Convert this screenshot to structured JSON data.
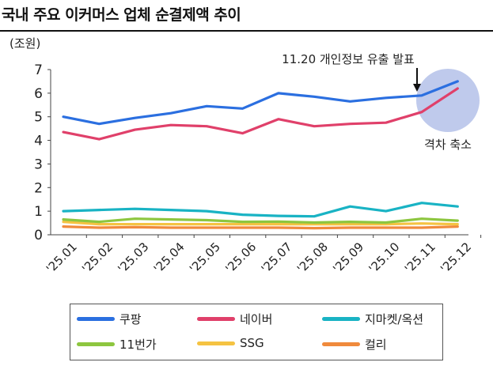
{
  "title": "국내 주요 이커머스 업체 순결제액 추이",
  "chart_data": {
    "type": "line",
    "title": "국내 주요 이커머스 업체 순결제액 추이",
    "ylabel": "(조원)",
    "xlabel": "",
    "ylim": [
      0,
      7
    ],
    "yticks": [
      "0",
      "1",
      "2",
      "3",
      "4",
      "5",
      "6",
      "7"
    ],
    "categories": [
      "'25.01",
      "'25.02",
      "'25.03",
      "'25.04",
      "'25.05",
      "'25.06",
      "'25.07",
      "'25.08",
      "'25.09",
      "'25.10",
      "'25.11",
      "'25.12"
    ],
    "series": [
      {
        "name": "쿠팡",
        "color": "#2b6fe0",
        "values": [
          5.0,
          4.7,
          4.95,
          5.15,
          5.45,
          5.35,
          6.0,
          5.85,
          5.65,
          5.8,
          5.9,
          6.5
        ]
      },
      {
        "name": "네이버",
        "color": "#e0406a",
        "values": [
          4.35,
          4.05,
          4.45,
          4.65,
          4.6,
          4.3,
          4.9,
          4.6,
          4.7,
          4.75,
          5.2,
          6.2
        ]
      },
      {
        "name": "지마켓/옥션",
        "color": "#19b3c4",
        "values": [
          1.0,
          1.05,
          1.1,
          1.05,
          1.0,
          0.85,
          0.8,
          0.78,
          1.2,
          1.0,
          1.35,
          1.2
        ]
      },
      {
        "name": "11번가",
        "color": "#8dc63f",
        "values": [
          0.65,
          0.55,
          0.68,
          0.65,
          0.62,
          0.55,
          0.56,
          0.52,
          0.55,
          0.52,
          0.68,
          0.6
        ]
      },
      {
        "name": "SSG",
        "color": "#f5c342",
        "values": [
          0.55,
          0.45,
          0.45,
          0.45,
          0.45,
          0.45,
          0.45,
          0.45,
          0.45,
          0.45,
          0.48,
          0.45
        ]
      },
      {
        "name": "컬리",
        "color": "#f08a3c",
        "values": [
          0.35,
          0.3,
          0.32,
          0.3,
          0.3,
          0.3,
          0.3,
          0.28,
          0.3,
          0.3,
          0.3,
          0.35
        ]
      }
    ],
    "annotations": [
      {
        "text": "11.20 개인정보 유출 발표",
        "at_category": "'25.11"
      },
      {
        "text": "격차 축소",
        "at_category": "'25.12"
      }
    ],
    "legend": "bottom"
  }
}
